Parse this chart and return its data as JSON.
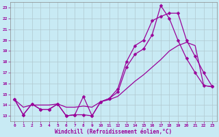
{
  "xlabel": "Windchill (Refroidissement éolien,°C)",
  "xlim": [
    -0.5,
    23.5
  ],
  "ylim": [
    12.5,
    23.5
  ],
  "yticks": [
    13,
    14,
    15,
    16,
    17,
    18,
    19,
    20,
    21,
    22,
    23
  ],
  "xticks": [
    0,
    1,
    2,
    3,
    4,
    5,
    6,
    7,
    8,
    9,
    10,
    11,
    12,
    13,
    14,
    15,
    16,
    17,
    18,
    19,
    20,
    21,
    22,
    23
  ],
  "bg_color": "#c8eaf4",
  "line_color": "#990099",
  "grid_color": "#b0c8d0",
  "line1_x": [
    0,
    1,
    2,
    3,
    4,
    5,
    6,
    7,
    8,
    9,
    10,
    11,
    12,
    13,
    14,
    15,
    16,
    17,
    18,
    19,
    20,
    21,
    22,
    23
  ],
  "line1_y": [
    14.5,
    13.1,
    14.1,
    13.6,
    13.6,
    14.1,
    13.0,
    13.1,
    14.8,
    13.0,
    14.3,
    14.6,
    15.5,
    18.0,
    19.5,
    20.0,
    21.8,
    22.2,
    22.5,
    22.5,
    20.0,
    18.5,
    17.0,
    15.7
  ],
  "line2_x": [
    0,
    1,
    2,
    3,
    4,
    5,
    6,
    7,
    8,
    9,
    10,
    11,
    12,
    13,
    14,
    15,
    16,
    17,
    18,
    19,
    20,
    21,
    22,
    23
  ],
  "line2_y": [
    14.5,
    13.1,
    14.1,
    13.6,
    13.6,
    14.1,
    13.0,
    13.1,
    13.1,
    13.0,
    14.3,
    14.6,
    15.2,
    17.5,
    18.7,
    19.2,
    20.5,
    23.2,
    22.0,
    20.0,
    18.3,
    17.0,
    15.8,
    15.7
  ],
  "line3_x": [
    0,
    1,
    2,
    3,
    4,
    5,
    6,
    7,
    8,
    9,
    10,
    11,
    12,
    13,
    14,
    15,
    16,
    17,
    18,
    19,
    20,
    21,
    22,
    23
  ],
  "line3_y": [
    14.5,
    13.8,
    14.0,
    14.0,
    14.0,
    14.1,
    13.8,
    13.8,
    13.9,
    13.8,
    14.3,
    14.5,
    14.8,
    15.5,
    16.2,
    16.8,
    17.5,
    18.2,
    19.0,
    19.5,
    19.8,
    19.5,
    15.8,
    15.7
  ],
  "markersize": 2.5,
  "linewidth": 0.9
}
